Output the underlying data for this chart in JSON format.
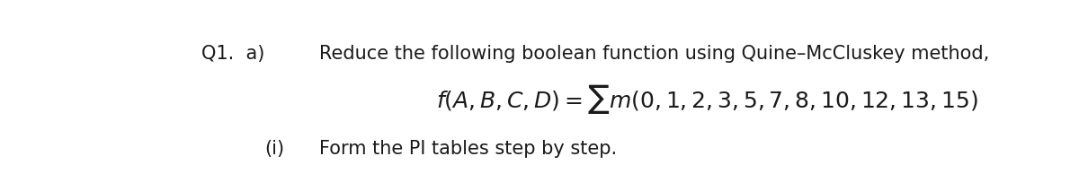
{
  "background_color": "#ffffff",
  "line1_left": "Q1.  a)",
  "line1_right": "Reduce the following boolean function using Quine–McCluskey method,",
  "line3_left": "(i)",
  "line3_right": "Form the PI tables step by step.",
  "font_size_line1": 15,
  "font_size_formula": 16,
  "font_size_line3": 15,
  "text_color": "#1a1a1a"
}
